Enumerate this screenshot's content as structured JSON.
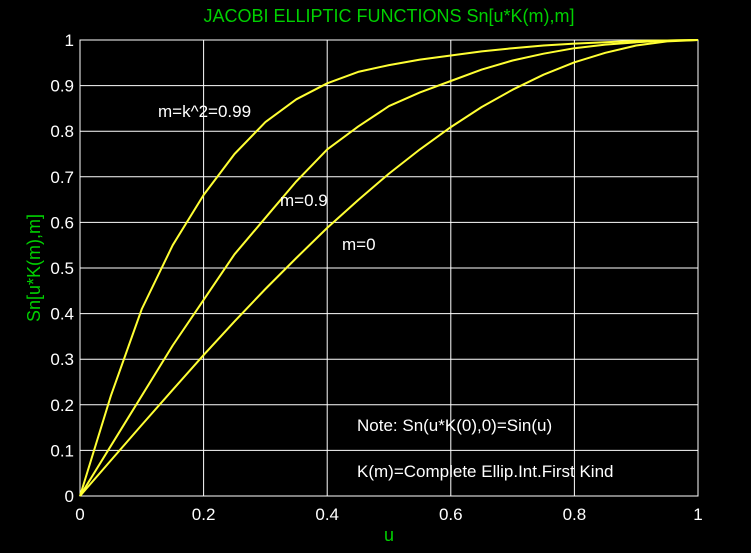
{
  "chart_data": {
    "type": "line",
    "title": "JACOBI ELLIPTIC FUNCTIONS Sn[u*K(m),m]",
    "xlabel": "u",
    "ylabel": "Sn[u*K(m),m]",
    "xlim": [
      0,
      1
    ],
    "ylim": [
      0,
      1
    ],
    "xticks": [
      "0",
      "0.2",
      "0.4",
      "0.6",
      "0.8",
      "1"
    ],
    "yticks": [
      "0",
      "0.1",
      "0.2",
      "0.3",
      "0.4",
      "0.5",
      "0.6",
      "0.7",
      "0.8",
      "0.9",
      "1"
    ],
    "grid": true,
    "line_color": "#ffff33",
    "grid_color": "#ffffff",
    "background": "#000000",
    "text_color": "#ffffff",
    "label_color": "#00d000",
    "x": [
      0,
      0.05,
      0.1,
      0.15,
      0.2,
      0.25,
      0.3,
      0.35,
      0.4,
      0.45,
      0.5,
      0.55,
      0.6,
      0.65,
      0.7,
      0.75,
      0.8,
      0.85,
      0.9,
      0.95,
      1.0
    ],
    "series": [
      {
        "label": "m=k^2=0.99",
        "values": [
          0,
          0.22,
          0.41,
          0.55,
          0.66,
          0.75,
          0.82,
          0.87,
          0.905,
          0.93,
          0.945,
          0.957,
          0.966,
          0.975,
          0.982,
          0.988,
          0.992,
          0.995,
          0.998,
          0.999,
          1.0
        ]
      },
      {
        "label": "m=0.9",
        "values": [
          0,
          0.11,
          0.22,
          0.33,
          0.43,
          0.53,
          0.61,
          0.69,
          0.76,
          0.81,
          0.855,
          0.885,
          0.91,
          0.935,
          0.955,
          0.97,
          0.982,
          0.99,
          0.995,
          0.999,
          1.0
        ]
      },
      {
        "label": "m=0",
        "values": [
          0,
          0.078,
          0.156,
          0.233,
          0.309,
          0.383,
          0.454,
          0.522,
          0.588,
          0.649,
          0.707,
          0.76,
          0.809,
          0.853,
          0.891,
          0.924,
          0.951,
          0.972,
          0.988,
          0.997,
          1.0
        ]
      }
    ],
    "annotations": [
      "Note: Sn(u*K(0),0)=Sin(u)",
      "K(m)=Complete Ellip.Int.First Kind"
    ]
  }
}
